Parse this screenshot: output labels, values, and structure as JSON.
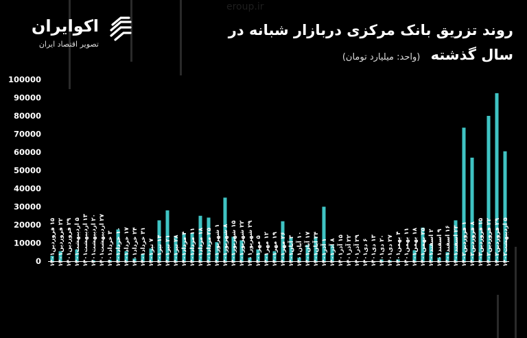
{
  "brand": {
    "name": "اکوایران",
    "tagline": "تصویر اقتصاد ایران",
    "watermark": "eroup.ir"
  },
  "colors": {
    "background": "#000000",
    "bar": "#3fc3c3",
    "axis": "#ffffff"
  },
  "chart_data": {
    "type": "bar",
    "title": "روند تزریق بانک مرکزی دربازار شبانه در سال گذشته",
    "unit_note": "(واحد: میلیارد تومان)",
    "ylim": [
      0,
      100000
    ],
    "yticks": [
      "0",
      "10000",
      "20000",
      "30000",
      "40000",
      "50000",
      "60000",
      "70000",
      "80000",
      "90000",
      "100000"
    ],
    "categories": [
      "۱۵ فروردین۱۴۰۱",
      "۲۲ فروردین۱۴۰۱",
      "۲۹ فروردین۱۴۰۱",
      "۵ اردیبهشت۱۴۰۱",
      "۱۳ اردیبهشت۱۴۰۱",
      "۲۰ اردیبهشت۱۴۰۱",
      "۲۷ اردیبهشت۱۴۰۱",
      "۳ خرداد۱۴۰۱",
      "۱۰ خرداد۱۴۰۱",
      "۱۷ خرداد۱۴۰۱",
      "۲۴ خرداد۱۴۰۱",
      "۳۱ خرداد۱۴۰۱",
      "۷ تیر۱۴۰۱",
      "۱۴ تیر۱۴۰۱",
      "۲۱ تیر۱۴۰۱",
      "۲۸ تیر۱۴۰۱",
      "۴ مرداد۱۴۰۱",
      "۱۱ مرداد۱۴۰۱",
      "۱۸ مرداد۱۴۰۱",
      "۲۵ مرداد۱۴۰۱",
      "۱ شهریور۱۴۰۱",
      "۸ شهریور۱۴۰۱",
      "۱۵ شهریور۱۴۰۱",
      "۲۲ شهریور۱۴۰۱",
      "۲۹ شهریور۱۴۰۱",
      "۵ مهر۱۴۰۱",
      "۱۲ مهر۱۴۰۱",
      "۱۹ مهر۱۴۰۱",
      "۲۶ مهر۱۴۰۱",
      "۳ آبان۱۴۰۱",
      "۱۰ آبان۱۴۰۱",
      "۱۷ آبان۱۴۰۱",
      "۲۴ آبان۱۴۰۱",
      "۱ آذر۱۴۰۱",
      "۸ آذر۱۴۰۱",
      "۱۵ آذر۱۴۰۱",
      "۲۲ آذر۱۴۰۱",
      "۲۹ آذر۱۴۰۱",
      "۶ دی۱۴۰۱",
      "۱۳ دی۱۴۰۱",
      "۲۰ دی۱۴۰۱",
      "۲۷ دی۱۴۰۱",
      "۴ بهمن۱۴۰۱",
      "۱۱ بهمن۱۴۰۱",
      "۱۸ بهمن۱۴۰۱",
      "۲۵ بهمن۱۴۰۱",
      "۲ اسفند۱۴۰۱",
      "۹ اسفند۱۴۰۱",
      "۱۶ اسفند۱۴۰۱",
      "۲۳ اسفند۱۴۰۱",
      "۱ فروردین۱۴۰۲",
      "۸ فروردین۱۴۰۲",
      "۱۵ فروردین۱۴۰۲",
      "۲۲ فروردین۱۴۰۲",
      "۲۹ فروردین۱۴۰۲",
      "۵ اردیبهشت۱۴۰۲"
    ],
    "values": [
      3000,
      5500,
      0,
      6500,
      0,
      500,
      0,
      700,
      17500,
      5500,
      1500,
      4000,
      7000,
      22500,
      28000,
      14000,
      15500,
      15500,
      25000,
      24000,
      10500,
      35000,
      13500,
      11500,
      2000,
      6500,
      4000,
      5500,
      22000,
      13000,
      2000,
      9000,
      13500,
      30000,
      9000,
      0,
      0,
      0,
      0,
      0,
      1000,
      500,
      1000,
      0,
      6000,
      18500,
      9500,
      2000,
      5000,
      22500,
      73500,
      57000,
      22500,
      80000,
      92500,
      60500
    ]
  }
}
